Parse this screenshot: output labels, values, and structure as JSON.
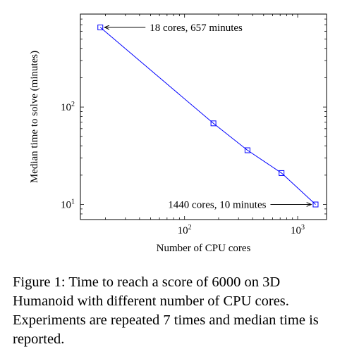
{
  "chart_data": {
    "type": "line",
    "xscale": "log",
    "yscale": "log",
    "xlabel": "Number of CPU cores",
    "ylabel": "Median time to solve (minutes)",
    "xlim": [
      12,
      1800
    ],
    "ylim": [
      7,
      900
    ],
    "xticks": [
      {
        "base": "10",
        "exp": "2",
        "value": 100
      },
      {
        "base": "10",
        "exp": "3",
        "value": 1000
      }
    ],
    "yticks": [
      {
        "base": "10",
        "exp": "1",
        "value": 10
      },
      {
        "base": "10",
        "exp": "2",
        "value": 100
      }
    ],
    "grid": false,
    "color": "#0000ff",
    "marker": "square",
    "series": [
      {
        "x": [
          18,
          180,
          360,
          720,
          1440
        ],
        "y": [
          657,
          68,
          36,
          21,
          10
        ]
      }
    ],
    "annotations": [
      {
        "text": "18 cores, 657 minutes",
        "point": [
          18,
          657
        ],
        "side": "right"
      },
      {
        "text": "1440 cores, 10 minutes",
        "point": [
          1440,
          10
        ],
        "side": "left"
      }
    ]
  },
  "caption": "Figure 1: Time to reach a score of 6000 on 3D Humanoid with different number of CPU cores. Experiments are repeated 7 times and median time is reported."
}
